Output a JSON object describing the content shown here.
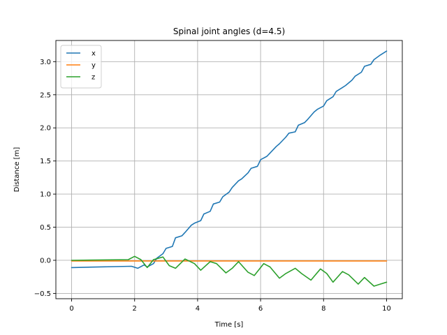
{
  "chart_data": {
    "type": "line",
    "title": "Spinal joint angles (d=4.5)",
    "xlabel": "Time [s]",
    "ylabel": "Distance [m]",
    "xlim": [
      -0.5,
      10.5
    ],
    "ylim": [
      -0.58,
      3.32
    ],
    "xticks": [
      0,
      2,
      4,
      6,
      8,
      10
    ],
    "yticks": [
      -0.5,
      0.0,
      0.5,
      1.0,
      1.5,
      2.0,
      2.5,
      3.0
    ],
    "xtick_labels": [
      "0",
      "2",
      "4",
      "6",
      "8",
      "10"
    ],
    "ytick_labels": [
      "−0.5",
      "0.0",
      "0.5",
      "1.0",
      "1.5",
      "2.0",
      "2.5",
      "3.0"
    ],
    "grid": true,
    "legend_position": "top-left",
    "series": [
      {
        "name": "x",
        "color": "#1f77b4",
        "x": [
          0,
          1.9,
          2.1,
          2.3,
          2.4,
          2.6,
          2.7,
          2.9,
          3.0,
          3.2,
          3.3,
          3.5,
          3.6,
          3.8,
          3.9,
          4.1,
          4.2,
          4.4,
          4.5,
          4.7,
          4.8,
          5.0,
          5.1,
          5.3,
          5.4,
          5.6,
          5.7,
          5.9,
          6.0,
          6.2,
          6.3,
          6.5,
          6.6,
          6.8,
          6.9,
          7.1,
          7.2,
          7.4,
          7.5,
          7.7,
          7.8,
          8.0,
          8.1,
          8.3,
          8.4,
          8.6,
          8.7,
          8.9,
          9.0,
          9.2,
          9.3,
          9.5,
          9.6,
          9.8,
          10.0
        ],
        "y": [
          -0.11,
          -0.09,
          -0.12,
          -0.07,
          -0.1,
          -0.05,
          0.03,
          0.1,
          0.18,
          0.21,
          0.34,
          0.37,
          0.42,
          0.53,
          0.56,
          0.6,
          0.7,
          0.74,
          0.85,
          0.88,
          0.96,
          1.03,
          1.1,
          1.2,
          1.23,
          1.32,
          1.39,
          1.42,
          1.52,
          1.57,
          1.62,
          1.72,
          1.76,
          1.86,
          1.92,
          1.94,
          2.04,
          2.08,
          2.13,
          2.24,
          2.28,
          2.33,
          2.41,
          2.47,
          2.55,
          2.61,
          2.64,
          2.72,
          2.78,
          2.84,
          2.93,
          2.96,
          3.03,
          3.1,
          3.16
        ]
      },
      {
        "name": "y",
        "color": "#ff7f0e",
        "x": [
          0,
          2,
          4,
          6,
          8,
          10
        ],
        "y": [
          -0.01,
          -0.01,
          -0.01,
          -0.01,
          -0.01,
          -0.01
        ]
      },
      {
        "name": "z",
        "color": "#2ca02c",
        "x": [
          0,
          1.8,
          2.0,
          2.2,
          2.4,
          2.6,
          2.9,
          3.1,
          3.3,
          3.6,
          3.9,
          4.1,
          4.4,
          4.6,
          4.9,
          5.1,
          5.3,
          5.6,
          5.8,
          6.1,
          6.3,
          6.6,
          6.8,
          7.1,
          7.3,
          7.6,
          7.9,
          8.1,
          8.3,
          8.6,
          8.8,
          9.1,
          9.3,
          9.6,
          9.8,
          10.0
        ],
        "y": [
          0.0,
          0.01,
          0.06,
          0.01,
          -0.11,
          0.01,
          0.05,
          -0.08,
          -0.12,
          0.02,
          -0.05,
          -0.15,
          -0.02,
          -0.05,
          -0.19,
          -0.12,
          -0.02,
          -0.18,
          -0.23,
          -0.05,
          -0.1,
          -0.27,
          -0.2,
          -0.12,
          -0.2,
          -0.3,
          -0.13,
          -0.2,
          -0.33,
          -0.17,
          -0.22,
          -0.36,
          -0.26,
          -0.39,
          -0.36,
          -0.33
        ]
      }
    ]
  }
}
